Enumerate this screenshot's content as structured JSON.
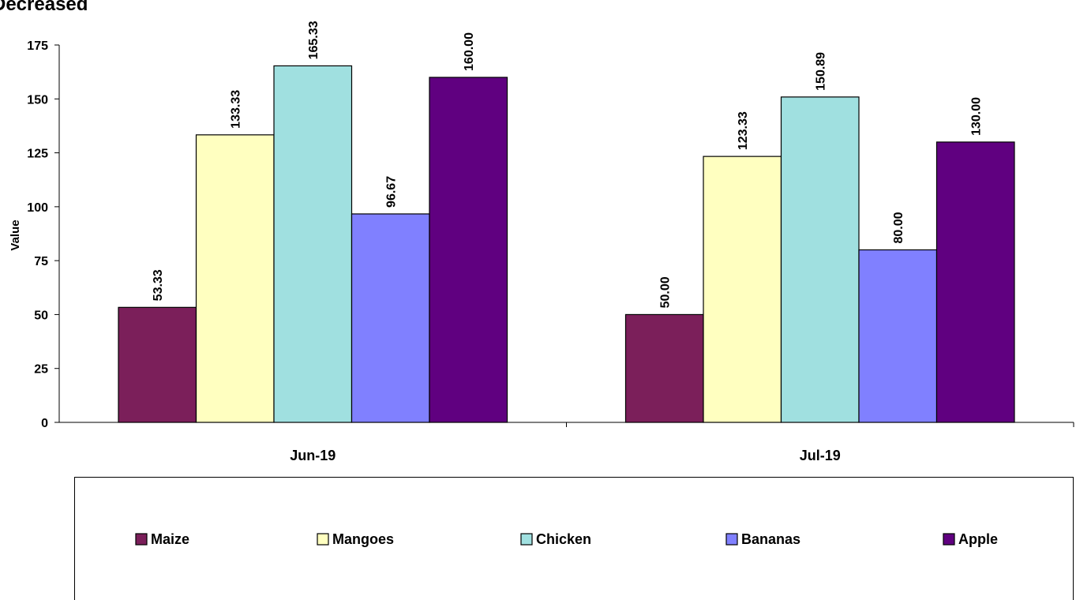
{
  "chart_data": {
    "type": "bar",
    "title": "Decreased",
    "ylabel": "Value",
    "xlabel": "",
    "categories": [
      "Jun-19",
      "Jul-19"
    ],
    "ylim": [
      0,
      175
    ],
    "yticks": [
      0,
      25,
      50,
      75,
      100,
      125,
      150,
      175
    ],
    "series": [
      {
        "name": "Maize",
        "values": [
          53.33,
          50.0
        ],
        "labels": [
          "53.33",
          "50.00"
        ],
        "color": "#7b1f5a"
      },
      {
        "name": "Mangoes",
        "values": [
          133.33,
          123.33
        ],
        "labels": [
          "133.33",
          "123.33"
        ],
        "color": "#ffffc0"
      },
      {
        "name": "Chicken",
        "values": [
          165.33,
          150.89
        ],
        "labels": [
          "165.33",
          "150.89"
        ],
        "color": "#a0e0e0"
      },
      {
        "name": "Bananas",
        "values": [
          96.67,
          80.0
        ],
        "labels": [
          "96.67",
          "80.00"
        ],
        "color": "#8080ff"
      },
      {
        "name": "Apple",
        "values": [
          160.0,
          130.0
        ],
        "labels": [
          "160.00",
          "130.00"
        ],
        "color": "#600080"
      }
    ],
    "legend_position": "bottom",
    "grid": false
  }
}
